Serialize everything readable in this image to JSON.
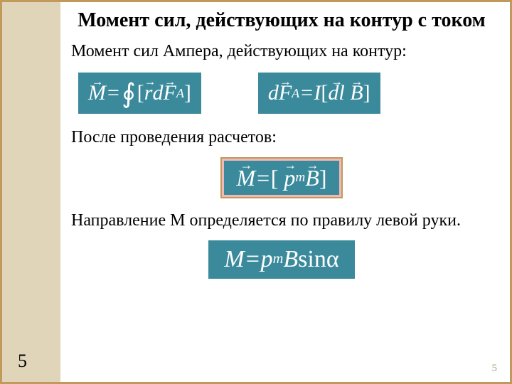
{
  "title": "Момент сил, действующих на контур с током",
  "subtitle": "Момент сил Ампера, действующих на контур:",
  "after_calc": "После проведения расчетов:",
  "direction_text": "Направление М определяется по правилу левой руки.",
  "page_left": "5",
  "page_right": "5",
  "formulas": {
    "f1_M": "M",
    "f1_eq": " = ",
    "f1_r": "r",
    "f1_d": "d",
    "f1_F": "F",
    "f1_A": "A",
    "f2_d": "d",
    "f2_F": "F",
    "f2_A": "A",
    "f2_eq": " = ",
    "f2_I": "I",
    "f2_dl": "dl",
    "f2_B": "B",
    "f3_M": "M",
    "f3_eq": "  = ",
    "f3_p": "p",
    "f3_m": "m",
    "f3_B": "B",
    "f4_M": "M",
    "f4_eq": " = ",
    "f4_p": " p",
    "f4_m": "m",
    "f4_B": "B",
    "f4_sin": " sin ",
    "f4_alpha": "α",
    "arrow": "→",
    "lbr": "[",
    "rbr": "]",
    "oint": "∮"
  },
  "colors": {
    "border": "#c19a5b",
    "sidebar": "#e0d5b8",
    "formula_bg": "#3b8a9c",
    "highlight_bg": "#f0b8b8"
  }
}
